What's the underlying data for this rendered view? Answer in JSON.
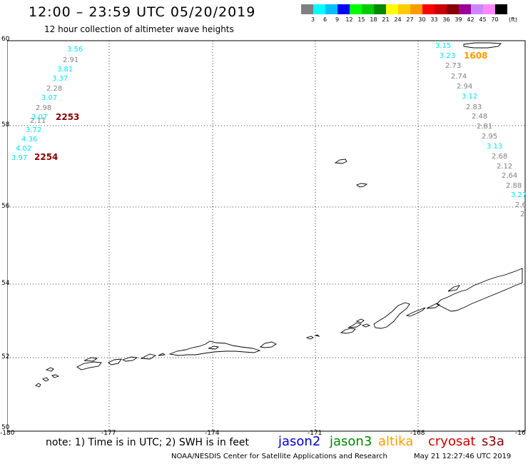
{
  "header": {
    "title": "12:00 – 23:59 UTC 05/20/2019",
    "subtitle": "12 hour collection of altimeter wave heights"
  },
  "color_scale": {
    "unit": "(ft)",
    "bins": [
      {
        "label": "3",
        "color": "#808080"
      },
      {
        "label": "6",
        "color": "#00ffff"
      },
      {
        "label": "9",
        "color": "#00bfff"
      },
      {
        "label": "12",
        "color": "#0000ff"
      },
      {
        "label": "15",
        "color": "#00ff00"
      },
      {
        "label": "18",
        "color": "#00cc00"
      },
      {
        "label": "21",
        "color": "#008800"
      },
      {
        "label": "24",
        "color": "#ffff00"
      },
      {
        "label": "27",
        "color": "#ffcc00"
      },
      {
        "label": "30",
        "color": "#ff9900"
      },
      {
        "label": "33",
        "color": "#ff0000"
      },
      {
        "label": "36",
        "color": "#cc0000"
      },
      {
        "label": "39",
        "color": "#880000"
      },
      {
        "label": "42",
        "color": "#990099"
      },
      {
        "label": "45",
        "color": "#cc88ff"
      },
      {
        "label": "70",
        "color": "#ff88ff"
      },
      {
        "label": "",
        "color": "#000000"
      }
    ]
  },
  "axes": {
    "lon_ticks": [
      "-180",
      "-177",
      "-174",
      "-171",
      "-168",
      "-16"
    ],
    "lat_ticks": [
      "60",
      "58",
      "56",
      "54",
      "52",
      "50"
    ]
  },
  "tracks": [
    {
      "points": [
        {
          "v": "3.56",
          "c": "#00e5ee"
        },
        {
          "v": "2.91",
          "c": "#808080"
        },
        {
          "v": "3.81",
          "c": "#00e5ee"
        },
        {
          "v": "3.37",
          "c": "#00e5ee"
        },
        {
          "v": "2.28",
          "c": "#808080"
        },
        {
          "v": "3.07",
          "c": "#00e5ee"
        },
        {
          "v": "2.98",
          "c": "#808080"
        },
        {
          "v": "3.07",
          "c": "#00e5ee"
        },
        {
          "v": "2.11",
          "c": "#808080"
        },
        {
          "v": "3.72",
          "c": "#00e5ee"
        },
        {
          "v": "4.36",
          "c": "#00e5ee"
        },
        {
          "v": "4.02",
          "c": "#00e5ee"
        },
        {
          "v": "3.97",
          "c": "#00e5ee"
        }
      ]
    },
    {
      "points": [
        {
          "v": "3.15",
          "c": "#00e5ee"
        },
        {
          "v": "3.23",
          "c": "#00e5ee"
        },
        {
          "v": "2.73",
          "c": "#808080"
        },
        {
          "v": "2.74",
          "c": "#808080"
        },
        {
          "v": "2.94",
          "c": "#808080"
        },
        {
          "v": "3.12",
          "c": "#00e5ee"
        },
        {
          "v": "2.83",
          "c": "#808080"
        },
        {
          "v": "2.48",
          "c": "#808080"
        },
        {
          "v": "2.81",
          "c": "#808080"
        },
        {
          "v": "2.95",
          "c": "#808080"
        },
        {
          "v": "3.13",
          "c": "#00e5ee"
        },
        {
          "v": "2.68",
          "c": "#808080"
        },
        {
          "v": "2.12",
          "c": "#808080"
        },
        {
          "v": "2.64",
          "c": "#808080"
        },
        {
          "v": "2.88",
          "c": "#808080"
        },
        {
          "v": "3.27",
          "c": "#00e5ee"
        },
        {
          "v": "2.6",
          "c": "#808080"
        },
        {
          "v": "2",
          "c": "#808080"
        }
      ]
    }
  ],
  "pass_times": [
    {
      "label": "2253",
      "color": "#8b0000"
    },
    {
      "label": "2254",
      "color": "#8b0000"
    },
    {
      "label": "1608",
      "color": "#ff9900"
    }
  ],
  "footer": {
    "note": "note: 1) Time is in UTC; 2) SWH is in feet",
    "satellites": [
      {
        "name": "jason2",
        "color": "#0000cc"
      },
      {
        "name": "jason3",
        "color": "#008800"
      },
      {
        "name": "altika",
        "color": "#ff9900"
      },
      {
        "name": "cryosat",
        "color": "#cc0000"
      },
      {
        "name": "s3a",
        "color": "#8b0000"
      }
    ],
    "credit": "NOAA/NESDIS Center for Satellite Applications and Research",
    "timestamp": "May 21 12:27:46 UTC 2019"
  }
}
